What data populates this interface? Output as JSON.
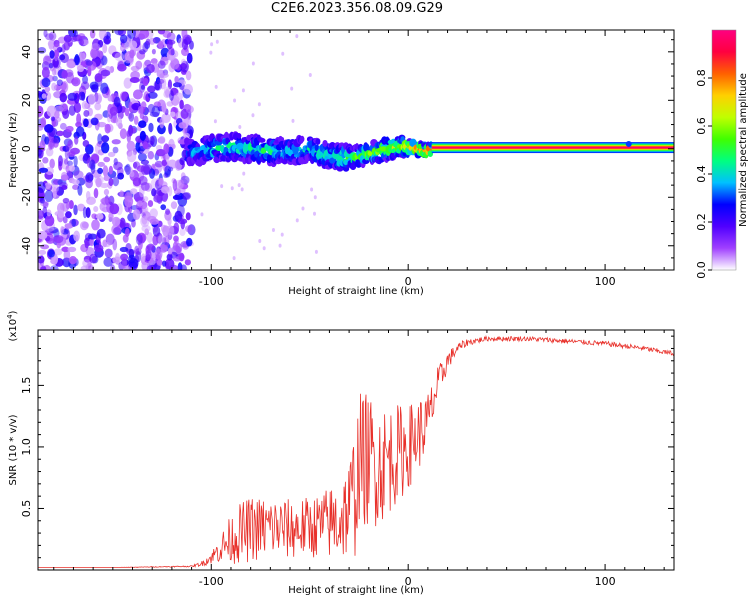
{
  "title": "C2E6.2023.356.08.09.G29",
  "chart_data": [
    {
      "type": "heatmap",
      "xlabel": "Height of straight line (km)",
      "ylabel": "Frequency (Hz)",
      "xlim": [
        -188,
        135
      ],
      "ylim": [
        -50,
        49
      ],
      "xticks": [
        -100,
        0,
        100
      ],
      "xtick_labels": [
        "-100",
        "0",
        "100"
      ],
      "yticks": [
        -40,
        -20,
        0,
        20,
        40
      ],
      "ytick_labels": [
        "-40",
        "-20",
        "0",
        "20",
        "40"
      ],
      "grid": false,
      "colorbar": {
        "label": "Normalized spectral amplitude",
        "range": [
          0,
          1
        ],
        "ticks": [
          0.0,
          0.2,
          0.4,
          0.6,
          0.8
        ],
        "tick_labels": [
          "0.0",
          "0.2",
          "0.4",
          "0.6",
          "0.8"
        ],
        "colormap": [
          "#ffffff",
          "#a040ff",
          "#5000ff",
          "#0000ff",
          "#00c0ff",
          "#00ff80",
          "#40ff00",
          "#c0ff00",
          "#ffd000",
          "#ff6000",
          "#ff0040",
          "#ff0080"
        ]
      },
      "ridge": {
        "x": [
          -112,
          -100,
          -90,
          -80,
          -70,
          -60,
          -50,
          -40,
          -30,
          -20,
          -10,
          0,
          5,
          10,
          12,
          20,
          135
        ],
        "y": [
          -2,
          0,
          1,
          0,
          -1,
          -1,
          0,
          -3,
          -4,
          -2,
          0,
          1,
          0,
          -1,
          0,
          0.5,
          0.5
        ],
        "amplitude": [
          0.3,
          0.4,
          0.45,
          0.45,
          0.45,
          0.4,
          0.4,
          0.45,
          0.5,
          0.55,
          0.6,
          0.7,
          0.8,
          0.85,
          0.9,
          0.97,
          0.97
        ]
      }
    },
    {
      "type": "line",
      "xlabel": "Height of straight line (km)",
      "ylabel": "SNR (10 * v/v)",
      "y_multiplier": "(x10",
      "y_multiplier_exp": "4",
      "y_multiplier_close": ")",
      "xlim": [
        -188,
        135
      ],
      "ylim": [
        0,
        1.95
      ],
      "xticks": [
        -100,
        0,
        100
      ],
      "xtick_labels": [
        "-100",
        "0",
        "100"
      ],
      "yticks": [
        0.5,
        1.0,
        1.5
      ],
      "ytick_labels": [
        "0.5",
        "1.0",
        "1.5"
      ],
      "grid": false,
      "series": [
        {
          "color": "#e8302a",
          "x": [
            -188,
            -150,
            -110,
            -105,
            -100,
            -95,
            -90,
            -85,
            -80,
            -70,
            -60,
            -50,
            -45,
            -40,
            -35,
            -30,
            -27,
            -25,
            -20,
            -15,
            -10,
            -5,
            0,
            5,
            10,
            15,
            20,
            25,
            30,
            40,
            50,
            60,
            70,
            80,
            90,
            100,
            110,
            120,
            130,
            135
          ],
          "y": [
            0.02,
            0.02,
            0.03,
            0.05,
            0.1,
            0.18,
            0.25,
            0.3,
            0.33,
            0.35,
            0.33,
            0.35,
            0.36,
            0.38,
            0.4,
            0.5,
            0.65,
            0.9,
            0.9,
            0.85,
            0.9,
            0.95,
            1.0,
            1.1,
            1.2,
            1.5,
            1.7,
            1.8,
            1.85,
            1.88,
            1.88,
            1.88,
            1.87,
            1.86,
            1.85,
            1.84,
            1.82,
            1.8,
            1.77,
            1.76
          ],
          "noise": [
            0.0,
            0.0,
            0.005,
            0.02,
            0.05,
            0.12,
            0.2,
            0.25,
            0.27,
            0.25,
            0.25,
            0.25,
            0.27,
            0.3,
            0.35,
            0.4,
            0.55,
            0.55,
            0.55,
            0.5,
            0.45,
            0.4,
            0.35,
            0.3,
            0.25,
            0.15,
            0.08,
            0.04,
            0.03,
            0.02,
            0.02,
            0.02,
            0.02,
            0.02,
            0.02,
            0.02,
            0.02,
            0.02,
            0.02,
            0.02
          ]
        }
      ]
    }
  ]
}
